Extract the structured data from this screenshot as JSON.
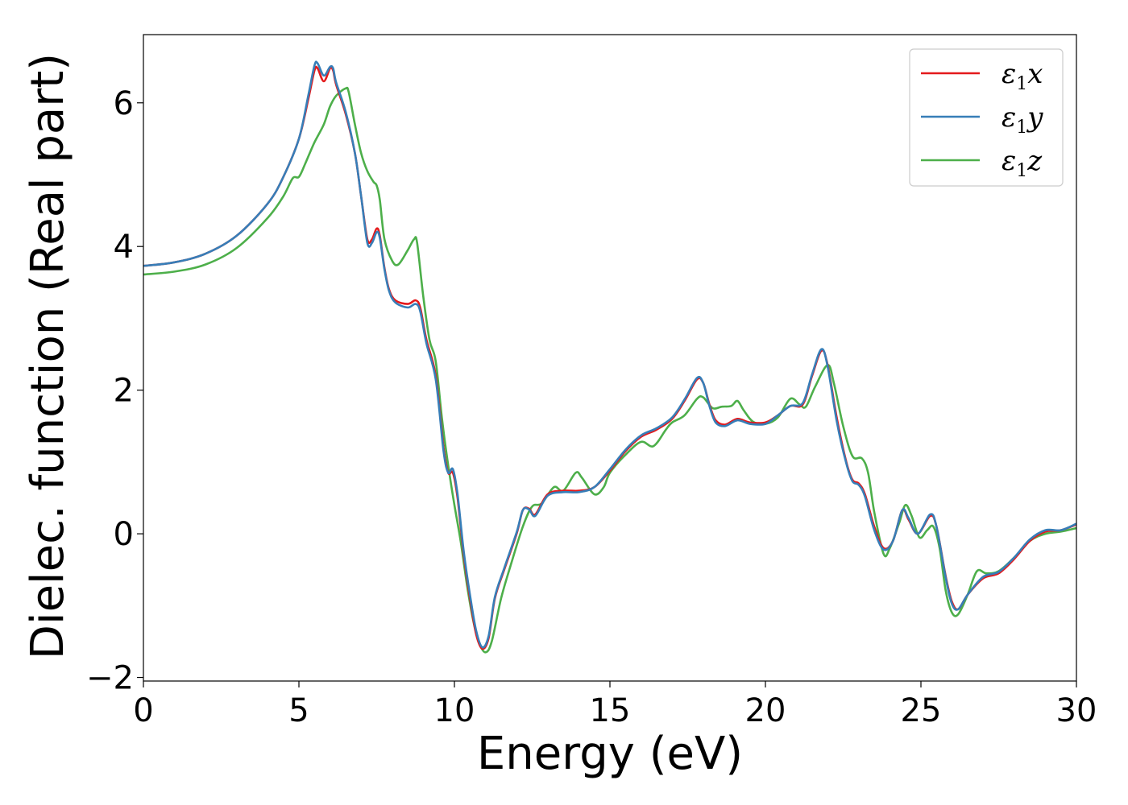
{
  "chart_data": {
    "type": "line",
    "title": "",
    "xlabel": "Energy (eV)",
    "ylabel": "Dielec. function (Real part)",
    "xlim": [
      0,
      30
    ],
    "ylim": [
      -2.05,
      6.95
    ],
    "xticks": [
      0,
      5,
      10,
      15,
      20,
      25,
      30
    ],
    "xtick_labels": [
      "0",
      "5",
      "10",
      "15",
      "20",
      "25",
      "30"
    ],
    "yticks": [
      -2,
      0,
      2,
      4,
      6
    ],
    "ytick_labels": [
      "−2",
      "0",
      "2",
      "4",
      "6"
    ],
    "grid": false,
    "legend_position": "top-right",
    "series": [
      {
        "name": "ε₁x",
        "legend_main": "ε",
        "legend_sub": "1",
        "legend_var": "x",
        "color": "#e41a1c",
        "points": [
          [
            0,
            3.73
          ],
          [
            1,
            3.78
          ],
          [
            2,
            3.9
          ],
          [
            3,
            4.15
          ],
          [
            4,
            4.6
          ],
          [
            4.5,
            4.97
          ],
          [
            5,
            5.5
          ],
          [
            5.3,
            6.05
          ],
          [
            5.5,
            6.45
          ],
          [
            5.6,
            6.48
          ],
          [
            5.8,
            6.3
          ],
          [
            6.0,
            6.48
          ],
          [
            6.1,
            6.45
          ],
          [
            6.2,
            6.25
          ],
          [
            6.5,
            5.85
          ],
          [
            6.8,
            5.3
          ],
          [
            7.0,
            4.7
          ],
          [
            7.2,
            4.1
          ],
          [
            7.35,
            4.1
          ],
          [
            7.5,
            4.25
          ],
          [
            7.6,
            4.15
          ],
          [
            7.75,
            3.7
          ],
          [
            7.9,
            3.4
          ],
          [
            8.1,
            3.25
          ],
          [
            8.5,
            3.2
          ],
          [
            8.75,
            3.25
          ],
          [
            8.9,
            3.15
          ],
          [
            9.1,
            2.7
          ],
          [
            9.4,
            2.2
          ],
          [
            9.65,
            1.2
          ],
          [
            9.8,
            0.85
          ],
          [
            9.95,
            0.85
          ],
          [
            10.1,
            0.5
          ],
          [
            10.3,
            -0.3
          ],
          [
            10.5,
            -0.9
          ],
          [
            10.7,
            -1.4
          ],
          [
            10.9,
            -1.6
          ],
          [
            11.1,
            -1.45
          ],
          [
            11.3,
            -0.9
          ],
          [
            11.6,
            -0.5
          ],
          [
            12.0,
            0.0
          ],
          [
            12.2,
            0.33
          ],
          [
            12.4,
            0.35
          ],
          [
            12.6,
            0.27
          ],
          [
            13.0,
            0.55
          ],
          [
            13.5,
            0.6
          ],
          [
            14.0,
            0.6
          ],
          [
            14.5,
            0.65
          ],
          [
            15.0,
            0.88
          ],
          [
            15.5,
            1.15
          ],
          [
            16.0,
            1.35
          ],
          [
            16.5,
            1.45
          ],
          [
            17.0,
            1.6
          ],
          [
            17.4,
            1.85
          ],
          [
            17.8,
            2.15
          ],
          [
            18.0,
            2.1
          ],
          [
            18.2,
            1.8
          ],
          [
            18.4,
            1.58
          ],
          [
            18.7,
            1.52
          ],
          [
            19.1,
            1.6
          ],
          [
            19.5,
            1.55
          ],
          [
            20.0,
            1.55
          ],
          [
            20.4,
            1.65
          ],
          [
            20.8,
            1.78
          ],
          [
            21.2,
            1.8
          ],
          [
            21.5,
            2.2
          ],
          [
            21.8,
            2.55
          ],
          [
            22.0,
            2.35
          ],
          [
            22.3,
            1.6
          ],
          [
            22.6,
            1.0
          ],
          [
            22.8,
            0.75
          ],
          [
            23.0,
            0.7
          ],
          [
            23.2,
            0.55
          ],
          [
            23.5,
            0.1
          ],
          [
            23.8,
            -0.2
          ],
          [
            24.1,
            -0.1
          ],
          [
            24.4,
            0.33
          ],
          [
            24.6,
            0.2
          ],
          [
            24.9,
            0.0
          ],
          [
            25.3,
            0.25
          ],
          [
            25.5,
            0.1
          ],
          [
            25.8,
            -0.6
          ],
          [
            26.0,
            -0.95
          ],
          [
            26.2,
            -1.05
          ],
          [
            26.5,
            -0.85
          ],
          [
            27.0,
            -0.62
          ],
          [
            27.5,
            -0.55
          ],
          [
            28.0,
            -0.35
          ],
          [
            28.5,
            -0.1
          ],
          [
            29.0,
            0.03
          ],
          [
            29.5,
            0.05
          ],
          [
            30.0,
            0.13
          ]
        ]
      },
      {
        "name": "ε₁y",
        "legend_main": "ε",
        "legend_sub": "1",
        "legend_var": "y",
        "color": "#377eb8",
        "points": [
          [
            0,
            3.73
          ],
          [
            1,
            3.78
          ],
          [
            2,
            3.9
          ],
          [
            3,
            4.15
          ],
          [
            4,
            4.6
          ],
          [
            4.5,
            4.97
          ],
          [
            5,
            5.5
          ],
          [
            5.3,
            6.1
          ],
          [
            5.5,
            6.52
          ],
          [
            5.6,
            6.55
          ],
          [
            5.8,
            6.38
          ],
          [
            6.0,
            6.5
          ],
          [
            6.1,
            6.48
          ],
          [
            6.2,
            6.28
          ],
          [
            6.5,
            5.88
          ],
          [
            6.8,
            5.3
          ],
          [
            7.0,
            4.7
          ],
          [
            7.2,
            4.05
          ],
          [
            7.35,
            4.05
          ],
          [
            7.5,
            4.2
          ],
          [
            7.6,
            4.12
          ],
          [
            7.75,
            3.68
          ],
          [
            7.9,
            3.38
          ],
          [
            8.1,
            3.22
          ],
          [
            8.5,
            3.15
          ],
          [
            8.75,
            3.2
          ],
          [
            8.9,
            3.1
          ],
          [
            9.1,
            2.65
          ],
          [
            9.4,
            2.15
          ],
          [
            9.65,
            1.15
          ],
          [
            9.8,
            0.85
          ],
          [
            9.95,
            0.9
          ],
          [
            10.1,
            0.55
          ],
          [
            10.3,
            -0.25
          ],
          [
            10.5,
            -0.85
          ],
          [
            10.7,
            -1.35
          ],
          [
            10.9,
            -1.58
          ],
          [
            11.1,
            -1.42
          ],
          [
            11.3,
            -0.88
          ],
          [
            11.6,
            -0.48
          ],
          [
            12.0,
            0.02
          ],
          [
            12.2,
            0.33
          ],
          [
            12.4,
            0.34
          ],
          [
            12.6,
            0.25
          ],
          [
            13.0,
            0.53
          ],
          [
            13.5,
            0.58
          ],
          [
            14.0,
            0.58
          ],
          [
            14.5,
            0.65
          ],
          [
            15.0,
            0.9
          ],
          [
            15.5,
            1.17
          ],
          [
            16.0,
            1.37
          ],
          [
            16.5,
            1.47
          ],
          [
            17.0,
            1.62
          ],
          [
            17.4,
            1.87
          ],
          [
            17.8,
            2.17
          ],
          [
            18.0,
            2.1
          ],
          [
            18.2,
            1.78
          ],
          [
            18.4,
            1.55
          ],
          [
            18.7,
            1.5
          ],
          [
            19.1,
            1.58
          ],
          [
            19.5,
            1.53
          ],
          [
            20.0,
            1.53
          ],
          [
            20.4,
            1.65
          ],
          [
            20.8,
            1.78
          ],
          [
            21.2,
            1.82
          ],
          [
            21.5,
            2.22
          ],
          [
            21.8,
            2.57
          ],
          [
            22.0,
            2.33
          ],
          [
            22.3,
            1.55
          ],
          [
            22.6,
            0.98
          ],
          [
            22.8,
            0.73
          ],
          [
            23.0,
            0.68
          ],
          [
            23.2,
            0.52
          ],
          [
            23.5,
            0.05
          ],
          [
            23.8,
            -0.22
          ],
          [
            24.1,
            -0.1
          ],
          [
            24.4,
            0.33
          ],
          [
            24.6,
            0.22
          ],
          [
            24.9,
            0.0
          ],
          [
            25.3,
            0.27
          ],
          [
            25.5,
            0.1
          ],
          [
            25.8,
            -0.62
          ],
          [
            26.0,
            -0.98
          ],
          [
            26.2,
            -1.05
          ],
          [
            26.5,
            -0.85
          ],
          [
            27.0,
            -0.6
          ],
          [
            27.5,
            -0.53
          ],
          [
            28.0,
            -0.33
          ],
          [
            28.5,
            -0.08
          ],
          [
            29.0,
            0.05
          ],
          [
            29.5,
            0.05
          ],
          [
            30.0,
            0.14
          ]
        ]
      },
      {
        "name": "ε₁z",
        "legend_main": "ε",
        "legend_sub": "1",
        "legend_var": "z",
        "color": "#4daf4a",
        "points": [
          [
            0,
            3.61
          ],
          [
            1,
            3.65
          ],
          [
            2,
            3.75
          ],
          [
            3,
            3.98
          ],
          [
            4,
            4.4
          ],
          [
            4.5,
            4.7
          ],
          [
            4.8,
            4.95
          ],
          [
            5.0,
            4.97
          ],
          [
            5.2,
            5.15
          ],
          [
            5.5,
            5.45
          ],
          [
            5.8,
            5.7
          ],
          [
            6.0,
            5.95
          ],
          [
            6.2,
            6.1
          ],
          [
            6.5,
            6.2
          ],
          [
            6.6,
            6.15
          ],
          [
            6.8,
            5.7
          ],
          [
            7.0,
            5.3
          ],
          [
            7.2,
            5.05
          ],
          [
            7.4,
            4.9
          ],
          [
            7.5,
            4.85
          ],
          [
            7.6,
            4.65
          ],
          [
            7.75,
            4.1
          ],
          [
            8.0,
            3.8
          ],
          [
            8.2,
            3.75
          ],
          [
            8.5,
            3.95
          ],
          [
            8.7,
            4.1
          ],
          [
            8.8,
            4.05
          ],
          [
            9.0,
            3.3
          ],
          [
            9.2,
            2.7
          ],
          [
            9.4,
            2.4
          ],
          [
            9.6,
            1.6
          ],
          [
            9.8,
            0.95
          ],
          [
            10.0,
            0.4
          ],
          [
            10.2,
            -0.1
          ],
          [
            10.4,
            -0.7
          ],
          [
            10.6,
            -1.2
          ],
          [
            10.8,
            -1.52
          ],
          [
            11.0,
            -1.65
          ],
          [
            11.2,
            -1.5
          ],
          [
            11.5,
            -0.9
          ],
          [
            11.8,
            -0.45
          ],
          [
            12.2,
            0.1
          ],
          [
            12.5,
            0.38
          ],
          [
            12.8,
            0.42
          ],
          [
            13.2,
            0.65
          ],
          [
            13.5,
            0.6
          ],
          [
            13.9,
            0.85
          ],
          [
            14.1,
            0.78
          ],
          [
            14.5,
            0.55
          ],
          [
            14.8,
            0.65
          ],
          [
            15.0,
            0.85
          ],
          [
            15.5,
            1.1
          ],
          [
            16.0,
            1.28
          ],
          [
            16.4,
            1.22
          ],
          [
            16.8,
            1.45
          ],
          [
            17.0,
            1.55
          ],
          [
            17.4,
            1.65
          ],
          [
            17.8,
            1.88
          ],
          [
            18.0,
            1.9
          ],
          [
            18.3,
            1.75
          ],
          [
            18.6,
            1.77
          ],
          [
            18.9,
            1.78
          ],
          [
            19.1,
            1.85
          ],
          [
            19.3,
            1.72
          ],
          [
            19.6,
            1.56
          ],
          [
            20.0,
            1.53
          ],
          [
            20.4,
            1.62
          ],
          [
            20.8,
            1.88
          ],
          [
            21.1,
            1.8
          ],
          [
            21.3,
            1.77
          ],
          [
            21.6,
            2.05
          ],
          [
            22.0,
            2.35
          ],
          [
            22.2,
            2.1
          ],
          [
            22.5,
            1.5
          ],
          [
            22.8,
            1.08
          ],
          [
            23.1,
            1.05
          ],
          [
            23.3,
            0.85
          ],
          [
            23.5,
            0.3
          ],
          [
            23.8,
            -0.28
          ],
          [
            24.0,
            -0.2
          ],
          [
            24.3,
            0.15
          ],
          [
            24.5,
            0.4
          ],
          [
            24.7,
            0.25
          ],
          [
            24.95,
            -0.05
          ],
          [
            25.2,
            0.05
          ],
          [
            25.4,
            0.1
          ],
          [
            25.6,
            -0.2
          ],
          [
            25.8,
            -0.8
          ],
          [
            26.0,
            -1.1
          ],
          [
            26.2,
            -1.12
          ],
          [
            26.5,
            -0.85
          ],
          [
            26.8,
            -0.52
          ],
          [
            27.1,
            -0.55
          ],
          [
            27.5,
            -0.52
          ],
          [
            28.0,
            -0.33
          ],
          [
            28.5,
            -0.1
          ],
          [
            29.0,
            0.0
          ],
          [
            29.5,
            0.03
          ],
          [
            30.0,
            0.08
          ]
        ]
      }
    ]
  }
}
